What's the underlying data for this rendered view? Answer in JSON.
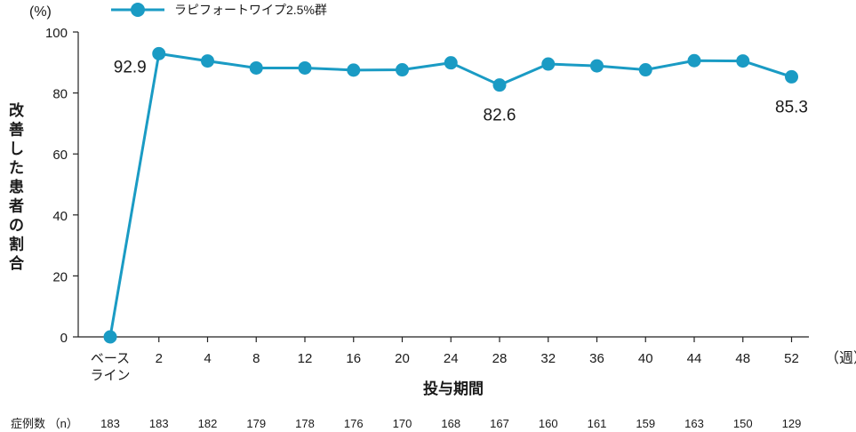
{
  "chart_data": {
    "type": "line",
    "y_unit": "(%)",
    "ylabel": "改善した患者の割合",
    "xlabel": "投与期間",
    "x_unit": "（週）",
    "ylim": [
      0,
      100
    ],
    "yticks": [
      "0",
      "20",
      "40",
      "60",
      "80",
      "100"
    ],
    "categories": [
      "ベース\nライン",
      "2",
      "4",
      "8",
      "12",
      "16",
      "20",
      "24",
      "28",
      "32",
      "36",
      "40",
      "44",
      "48",
      "52"
    ],
    "series": [
      {
        "name": "ラピフォートワイプ2.5%群",
        "color": "#1a9bc4",
        "values": [
          0,
          92.9,
          90.5,
          88.2,
          88.2,
          87.5,
          87.6,
          89.9,
          82.6,
          89.5,
          88.9,
          87.6,
          90.6,
          90.5,
          85.3
        ]
      }
    ],
    "annotations": [
      {
        "category_index": 1,
        "text": "92.9",
        "position": "left"
      },
      {
        "category_index": 8,
        "text": "82.6",
        "position": "below"
      },
      {
        "category_index": 14,
        "text": "85.3",
        "position": "below"
      }
    ],
    "n_label": "症例数 （n）",
    "n_values": [
      "183",
      "183",
      "182",
      "179",
      "178",
      "176",
      "170",
      "168",
      "167",
      "160",
      "161",
      "159",
      "163",
      "150",
      "129"
    ],
    "grid": false,
    "legend": "top-left"
  }
}
